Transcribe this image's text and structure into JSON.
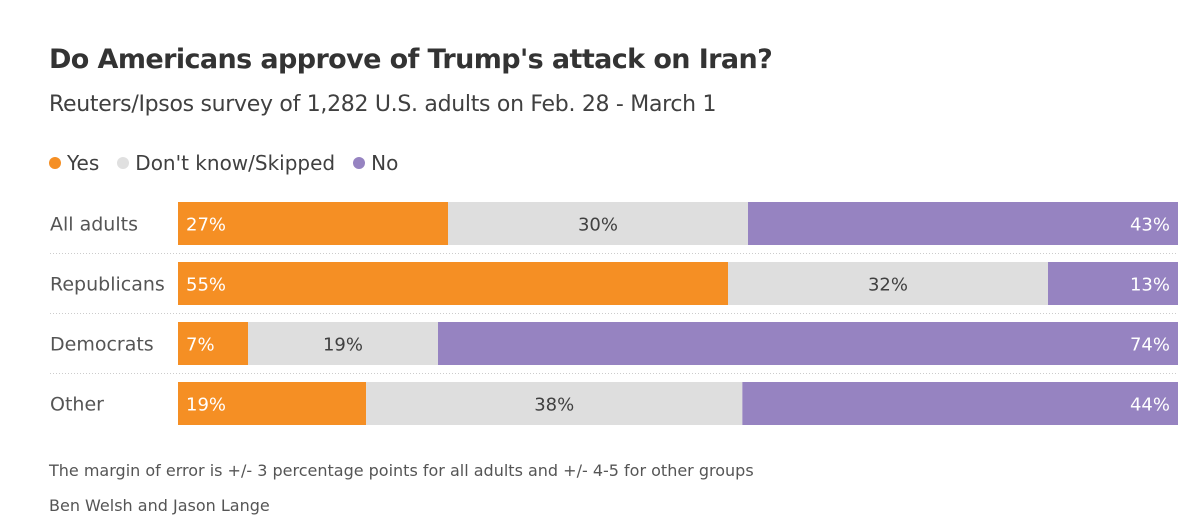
{
  "title": "Do Americans approve of Trump's attack on Iran?",
  "subtitle": "Reuters/Ipsos survey of 1,282 U.S. adults on Feb. 28 - March 1",
  "note": "The margin of error is +/- 3 percentage points for all adults and +/- 4-5 for other groups",
  "byline": "Ben Welsh and Jason Lange",
  "chart_data": {
    "type": "bar",
    "orientation": "horizontal-stacked",
    "categories": [
      "All adults",
      "Republicans",
      "Democrats",
      "Other"
    ],
    "series": [
      {
        "name": "Yes",
        "color": "#f58f24",
        "values": [
          27,
          55,
          7,
          19
        ]
      },
      {
        "name": "Don't know/Skipped",
        "color": "#dedede",
        "values": [
          30,
          32,
          19,
          38
        ]
      },
      {
        "name": "No",
        "color": "#9683c1",
        "values": [
          43,
          13,
          74,
          44
        ]
      }
    ],
    "unit": "%",
    "legend": "top-left",
    "grid": false
  }
}
